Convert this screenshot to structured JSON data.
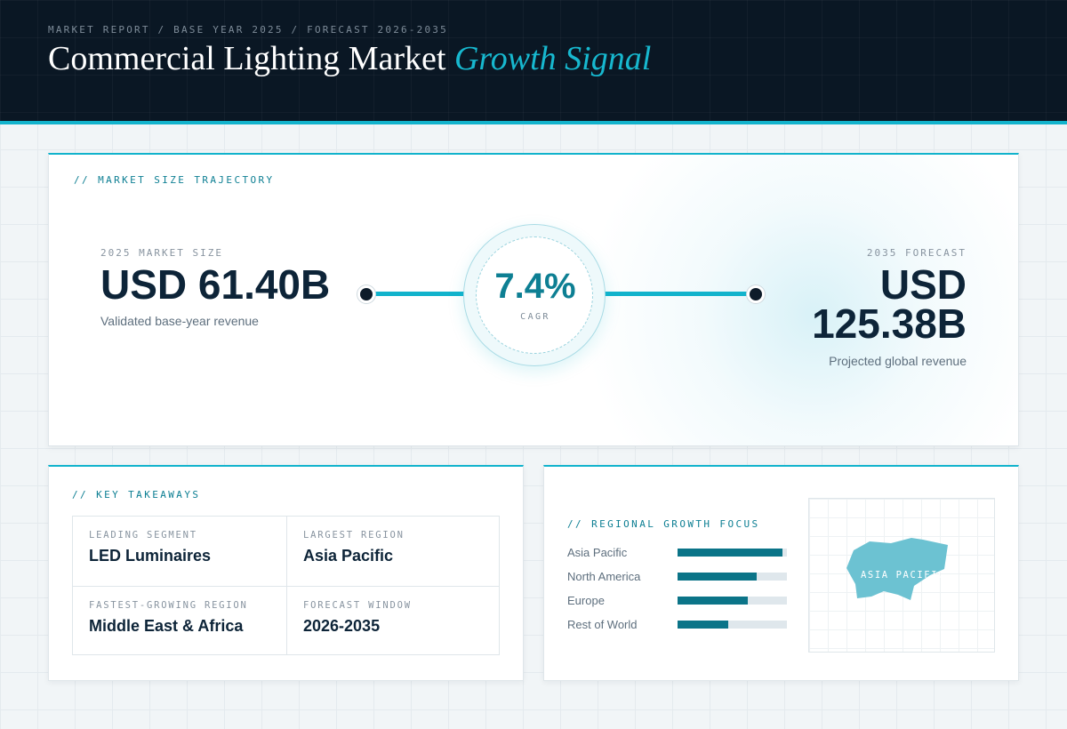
{
  "header": {
    "kicker": "MARKET REPORT / BASE YEAR 2025 / FORECAST 2026-2035",
    "title_main": "Commercial Lighting Market",
    "title_accent": "Growth Signal"
  },
  "trajectory": {
    "section_label": "// MARKET SIZE TRAJECTORY",
    "base": {
      "label": "2025 MARKET SIZE",
      "value": "USD 61.40B",
      "caption": "Validated base-year revenue"
    },
    "cagr": {
      "value": "7.4%",
      "label": "CAGR"
    },
    "forecast": {
      "label": "2035 FORECAST",
      "value_line1": "USD",
      "value_line2": "125.38B",
      "caption": "Projected global revenue"
    }
  },
  "takeaways": {
    "section_label": "// KEY TAKEAWAYS",
    "items": [
      {
        "label": "LEADING SEGMENT",
        "value": "LED Luminaires"
      },
      {
        "label": "LARGEST REGION",
        "value": "Asia Pacific"
      },
      {
        "label": "FASTEST-GROWING REGION",
        "value": "Middle East & Africa"
      },
      {
        "label": "FORECAST WINDOW",
        "value": "2026-2035"
      }
    ]
  },
  "regional": {
    "section_label": "// REGIONAL GROWTH FOCUS",
    "bars": [
      {
        "name": "Asia Pacific",
        "level": 0.96
      },
      {
        "name": "North America",
        "level": 0.72
      },
      {
        "name": "Europe",
        "level": 0.64
      },
      {
        "name": "Rest of World",
        "level": 0.46
      }
    ],
    "map_label": "ASIA PACIFIC"
  },
  "colors": {
    "accent": "#12b3cc",
    "accent_dark": "#0d7f93",
    "bar_fill": "#0b7488",
    "header_bg": "#0a1724",
    "map_shape": "#6cc2d2"
  }
}
